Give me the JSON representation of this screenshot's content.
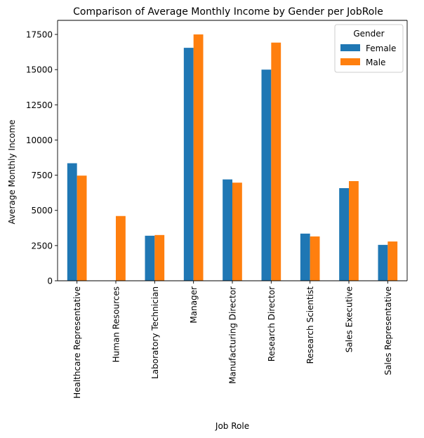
{
  "chart_data": {
    "type": "bar",
    "title": "Comparison of Average Monthly Income by Gender per JobRole",
    "xlabel": "Job Role",
    "ylabel": "Average Monthly Income",
    "ylim": [
      0,
      18500
    ],
    "yticks": [
      0,
      2500,
      5000,
      7500,
      10000,
      12500,
      15000,
      17500
    ],
    "ytick_labels": [
      "0",
      "2500",
      "5000",
      "7500",
      "10000",
      "12500",
      "15000",
      "17500"
    ],
    "grid": false,
    "legend": {
      "title": "Gender",
      "placement": "top-right"
    },
    "categories": [
      "Healthcare Representative",
      "Human Resources",
      "Laboratory Technician",
      "Manager",
      "Manufacturing Director",
      "Research Director",
      "Research Scientist",
      "Sales Executive",
      "Sales Representative"
    ],
    "series": [
      {
        "name": "Female",
        "color": "#1f77b4",
        "values": [
          8350,
          null,
          3200,
          16550,
          7200,
          15000,
          3350,
          6580,
          2550
        ]
      },
      {
        "name": "Male",
        "color": "#ff7f0e",
        "values": [
          7470,
          4600,
          3250,
          17500,
          6970,
          16920,
          3150,
          7080,
          2790
        ]
      }
    ]
  }
}
